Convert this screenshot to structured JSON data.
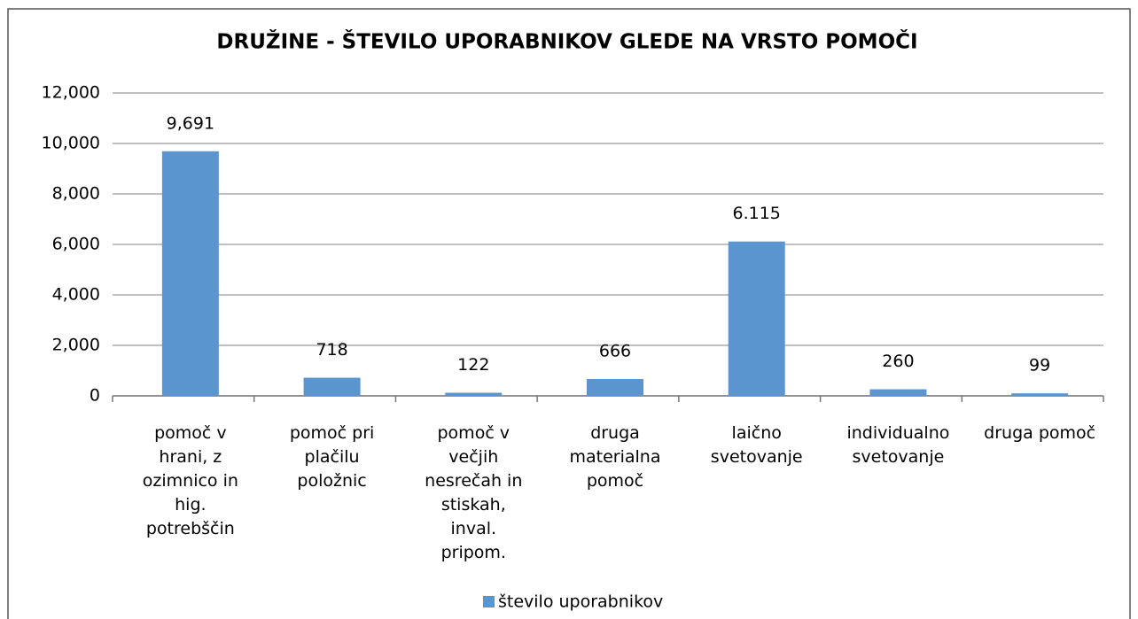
{
  "chart_data": {
    "type": "bar",
    "title": "DRUŽINE - ŠTEVILO UPORABNIKOV GLEDE NA VRSTO POMOČI",
    "categories": [
      "pomoč v hrani, z ozimnico in hig. potrebščin",
      "pomoč pri plačilu položnic",
      "pomoč v večjih nesrečah in stiskah, inval. pripom.",
      "druga materialna pomoč",
      "laično svetovanje",
      "individualno svetovanje",
      "druga pomoč"
    ],
    "series": [
      {
        "name": "število uporabnikov",
        "color": "#5b95d0",
        "values": [
          9691,
          718,
          122,
          666,
          6115,
          260,
          99
        ],
        "value_labels": [
          "9,691",
          "718",
          "122",
          "666",
          "6.115",
          "260",
          "99"
        ]
      }
    ],
    "ylim": [
      0,
      12000
    ],
    "yticks": [
      0,
      {
        "value": 2000,
        "label": "2,000"
      },
      {
        "value": 4000,
        "label": "4,000"
      },
      {
        "value": 6000,
        "label": "6,000"
      },
      {
        "value": 8000,
        "label": "8,000"
      },
      {
        "value": 10000,
        "label": "10,000"
      },
      {
        "value": 12000,
        "label": "12,000"
      }
    ],
    "grid": true,
    "legend": "bottom"
  }
}
